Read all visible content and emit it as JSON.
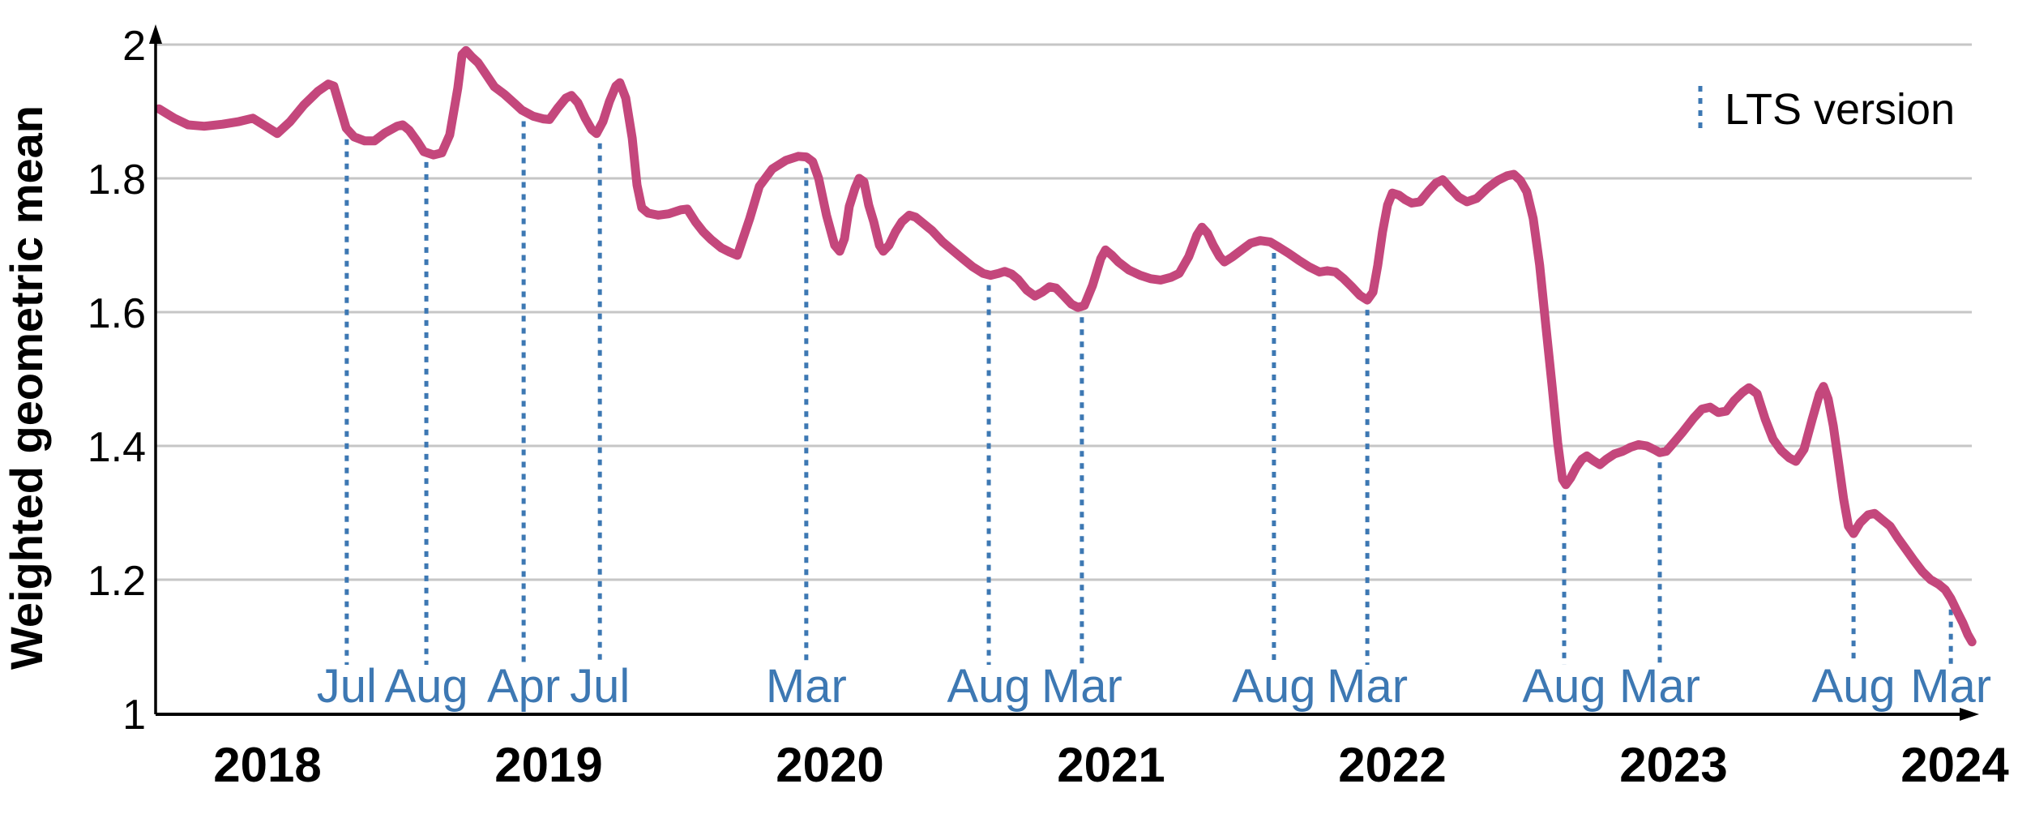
{
  "legend": {
    "label": "LTS version"
  },
  "axes": {
    "y_title": "Weighted geometric mean",
    "y_ticks": [
      {
        "label": "2",
        "value": 2.0
      },
      {
        "label": "1.8",
        "value": 1.8
      },
      {
        "label": "1.6",
        "value": 1.6
      },
      {
        "label": "1.4",
        "value": 1.4
      },
      {
        "label": "1.2",
        "value": 1.2
      },
      {
        "label": "1",
        "value": 1.0
      }
    ],
    "x_ticks": [
      {
        "label": "2018",
        "value": 2018
      },
      {
        "label": "2019",
        "value": 2019
      },
      {
        "label": "2020",
        "value": 2020
      },
      {
        "label": "2021",
        "value": 2021
      },
      {
        "label": "2022",
        "value": 2022
      },
      {
        "label": "2023",
        "value": 2023
      },
      {
        "label": "2024",
        "value": 2024
      }
    ]
  },
  "colors": {
    "line": "#c4477c",
    "marker": "#3d78b3",
    "grid": "#c6c6c6",
    "axis": "#000000"
  },
  "chart_data": {
    "type": "line",
    "title": "",
    "xlabel": "",
    "ylabel": "Weighted geometric mean",
    "ylim": [
      1,
      2
    ],
    "xlim": [
      2017.602,
      2024.075
    ],
    "grid": "horizontal",
    "legend_position": "top-right",
    "legend_entries": [
      {
        "name": "LTS version",
        "style": "dotted-vertical-line"
      }
    ],
    "lts_markers": [
      {
        "month": "Jul",
        "x": 2018.282,
        "top": 1.873
      },
      {
        "month": "Aug",
        "x": 2018.565,
        "top": 1.839
      },
      {
        "month": "Apr",
        "x": 2018.911,
        "top": 1.9
      },
      {
        "month": "Jul",
        "x": 2019.182,
        "top": 1.867
      },
      {
        "month": "Mar",
        "x": 2019.916,
        "top": 1.83
      },
      {
        "month": "Aug",
        "x": 2020.565,
        "top": 1.655
      },
      {
        "month": "Mar",
        "x": 2020.896,
        "top": 1.607
      },
      {
        "month": "Aug",
        "x": 2021.579,
        "top": 1.703
      },
      {
        "month": "Mar",
        "x": 2021.911,
        "top": 1.618
      },
      {
        "month": "Aug",
        "x": 2022.611,
        "top": 1.342
      },
      {
        "month": "Mar",
        "x": 2022.951,
        "top": 1.39
      },
      {
        "month": "Aug",
        "x": 2023.64,
        "top": 1.269
      },
      {
        "month": "Mar",
        "x": 2023.986,
        "top": 1.17
      }
    ],
    "series": [
      {
        "name": "Weighted geometric mean",
        "points": [
          [
            2017.614,
            1.904
          ],
          [
            2017.669,
            1.89
          ],
          [
            2017.718,
            1.88
          ],
          [
            2017.775,
            1.878
          ],
          [
            2017.841,
            1.881
          ],
          [
            2017.899,
            1.885
          ],
          [
            2017.948,
            1.89
          ],
          [
            2017.994,
            1.878
          ],
          [
            2018.035,
            1.867
          ],
          [
            2018.081,
            1.885
          ],
          [
            2018.13,
            1.91
          ],
          [
            2018.179,
            1.93
          ],
          [
            2018.216,
            1.941
          ],
          [
            2018.236,
            1.938
          ],
          [
            2018.259,
            1.905
          ],
          [
            2018.28,
            1.875
          ],
          [
            2018.308,
            1.862
          ],
          [
            2018.346,
            1.856
          ],
          [
            2018.38,
            1.856
          ],
          [
            2018.418,
            1.868
          ],
          [
            2018.461,
            1.878
          ],
          [
            2018.481,
            1.88
          ],
          [
            2018.504,
            1.872
          ],
          [
            2018.533,
            1.855
          ],
          [
            2018.556,
            1.84
          ],
          [
            2018.591,
            1.835
          ],
          [
            2018.62,
            1.838
          ],
          [
            2018.648,
            1.865
          ],
          [
            2018.677,
            1.935
          ],
          [
            2018.692,
            1.985
          ],
          [
            2018.706,
            1.991
          ],
          [
            2018.726,
            1.982
          ],
          [
            2018.749,
            1.973
          ],
          [
            2018.778,
            1.955
          ],
          [
            2018.807,
            1.937
          ],
          [
            2018.842,
            1.926
          ],
          [
            2018.879,
            1.912
          ],
          [
            2018.905,
            1.902
          ],
          [
            2018.945,
            1.893
          ],
          [
            2018.98,
            1.889
          ],
          [
            2019.003,
            1.888
          ],
          [
            2019.032,
            1.905
          ],
          [
            2019.061,
            1.92
          ],
          [
            2019.081,
            1.924
          ],
          [
            2019.104,
            1.913
          ],
          [
            2019.13,
            1.89
          ],
          [
            2019.153,
            1.873
          ],
          [
            2019.17,
            1.867
          ],
          [
            2019.193,
            1.885
          ],
          [
            2019.216,
            1.915
          ],
          [
            2019.239,
            1.938
          ],
          [
            2019.253,
            1.943
          ],
          [
            2019.274,
            1.92
          ],
          [
            2019.297,
            1.86
          ],
          [
            2019.314,
            1.79
          ],
          [
            2019.331,
            1.756
          ],
          [
            2019.354,
            1.748
          ],
          [
            2019.389,
            1.745
          ],
          [
            2019.427,
            1.747
          ],
          [
            2019.47,
            1.753
          ],
          [
            2019.493,
            1.754
          ],
          [
            2019.522,
            1.735
          ],
          [
            2019.55,
            1.72
          ],
          [
            2019.579,
            1.708
          ],
          [
            2019.614,
            1.696
          ],
          [
            2019.643,
            1.69
          ],
          [
            2019.671,
            1.685
          ],
          [
            2019.715,
            1.74
          ],
          [
            2019.749,
            1.788
          ],
          [
            2019.795,
            1.814
          ],
          [
            2019.844,
            1.827
          ],
          [
            2019.888,
            1.833
          ],
          [
            2019.916,
            1.832
          ],
          [
            2019.939,
            1.825
          ],
          [
            2019.96,
            1.8
          ],
          [
            2019.988,
            1.745
          ],
          [
            2020.017,
            1.7
          ],
          [
            2020.035,
            1.691
          ],
          [
            2020.052,
            1.71
          ],
          [
            2020.069,
            1.758
          ],
          [
            2020.089,
            1.785
          ],
          [
            2020.104,
            1.8
          ],
          [
            2020.121,
            1.795
          ],
          [
            2020.138,
            1.76
          ],
          [
            2020.156,
            1.735
          ],
          [
            2020.176,
            1.7
          ],
          [
            2020.19,
            1.691
          ],
          [
            2020.21,
            1.7
          ],
          [
            2020.233,
            1.72
          ],
          [
            2020.256,
            1.735
          ],
          [
            2020.282,
            1.745
          ],
          [
            2020.305,
            1.742
          ],
          [
            2020.334,
            1.732
          ],
          [
            2020.363,
            1.722
          ],
          [
            2020.401,
            1.705
          ],
          [
            2020.435,
            1.693
          ],
          [
            2020.472,
            1.68
          ],
          [
            2020.507,
            1.668
          ],
          [
            2020.545,
            1.658
          ],
          [
            2020.571,
            1.655
          ],
          [
            2020.6,
            1.658
          ],
          [
            2020.622,
            1.661
          ],
          [
            2020.646,
            1.657
          ],
          [
            2020.669,
            1.649
          ],
          [
            2020.7,
            1.633
          ],
          [
            2020.729,
            1.624
          ],
          [
            2020.755,
            1.63
          ],
          [
            2020.781,
            1.638
          ],
          [
            2020.804,
            1.636
          ],
          [
            2020.83,
            1.625
          ],
          [
            2020.859,
            1.612
          ],
          [
            2020.882,
            1.607
          ],
          [
            2020.905,
            1.61
          ],
          [
            2020.934,
            1.64
          ],
          [
            2020.963,
            1.68
          ],
          [
            2020.98,
            1.693
          ],
          [
            2021.003,
            1.685
          ],
          [
            2021.026,
            1.675
          ],
          [
            2021.063,
            1.663
          ],
          [
            2021.104,
            1.655
          ],
          [
            2021.141,
            1.65
          ],
          [
            2021.176,
            1.648
          ],
          [
            2021.213,
            1.652
          ],
          [
            2021.242,
            1.658
          ],
          [
            2021.276,
            1.683
          ],
          [
            2021.305,
            1.715
          ],
          [
            2021.323,
            1.727
          ],
          [
            2021.343,
            1.718
          ],
          [
            2021.363,
            1.7
          ],
          [
            2021.386,
            1.683
          ],
          [
            2021.403,
            1.675
          ],
          [
            2021.429,
            1.682
          ],
          [
            2021.464,
            1.693
          ],
          [
            2021.496,
            1.703
          ],
          [
            2021.53,
            1.707
          ],
          [
            2021.565,
            1.705
          ],
          [
            2021.597,
            1.697
          ],
          [
            2021.631,
            1.688
          ],
          [
            2021.666,
            1.678
          ],
          [
            2021.703,
            1.668
          ],
          [
            2021.741,
            1.66
          ],
          [
            2021.769,
            1.662
          ],
          [
            2021.798,
            1.66
          ],
          [
            2021.827,
            1.65
          ],
          [
            2021.856,
            1.638
          ],
          [
            2021.885,
            1.625
          ],
          [
            2021.911,
            1.618
          ],
          [
            2021.931,
            1.63
          ],
          [
            2021.948,
            1.67
          ],
          [
            2021.965,
            1.72
          ],
          [
            2021.983,
            1.76
          ],
          [
            2022.0,
            1.778
          ],
          [
            2022.023,
            1.775
          ],
          [
            2022.046,
            1.768
          ],
          [
            2022.069,
            1.763
          ],
          [
            2022.098,
            1.765
          ],
          [
            2022.127,
            1.78
          ],
          [
            2022.155,
            1.793
          ],
          [
            2022.179,
            1.798
          ],
          [
            2022.207,
            1.785
          ],
          [
            2022.236,
            1.772
          ],
          [
            2022.265,
            1.765
          ],
          [
            2022.3,
            1.77
          ],
          [
            2022.337,
            1.785
          ],
          [
            2022.375,
            1.797
          ],
          [
            2022.409,
            1.804
          ],
          [
            2022.432,
            1.806
          ],
          [
            2022.455,
            1.797
          ],
          [
            2022.478,
            1.78
          ],
          [
            2022.501,
            1.74
          ],
          [
            2022.524,
            1.67
          ],
          [
            2022.547,
            1.575
          ],
          [
            2022.568,
            1.49
          ],
          [
            2022.588,
            1.405
          ],
          [
            2022.605,
            1.35
          ],
          [
            2022.617,
            1.342
          ],
          [
            2022.634,
            1.352
          ],
          [
            2022.654,
            1.368
          ],
          [
            2022.674,
            1.38
          ],
          [
            2022.692,
            1.385
          ],
          [
            2022.715,
            1.378
          ],
          [
            2022.738,
            1.372
          ],
          [
            2022.761,
            1.38
          ],
          [
            2022.79,
            1.388
          ],
          [
            2022.819,
            1.392
          ],
          [
            2022.847,
            1.398
          ],
          [
            2022.876,
            1.402
          ],
          [
            2022.905,
            1.4
          ],
          [
            2022.934,
            1.394
          ],
          [
            2022.951,
            1.39
          ],
          [
            2022.974,
            1.392
          ],
          [
            2022.997,
            1.403
          ],
          [
            2023.031,
            1.42
          ],
          [
            2023.072,
            1.442
          ],
          [
            2023.101,
            1.455
          ],
          [
            2023.13,
            1.458
          ],
          [
            2023.159,
            1.45
          ],
          [
            2023.187,
            1.452
          ],
          [
            2023.216,
            1.468
          ],
          [
            2023.245,
            1.48
          ],
          [
            2023.268,
            1.487
          ],
          [
            2023.297,
            1.478
          ],
          [
            2023.326,
            1.44
          ],
          [
            2023.354,
            1.41
          ],
          [
            2023.383,
            1.393
          ],
          [
            2023.412,
            1.382
          ],
          [
            2023.435,
            1.377
          ],
          [
            2023.464,
            1.395
          ],
          [
            2023.493,
            1.44
          ],
          [
            2023.519,
            1.478
          ],
          [
            2023.533,
            1.489
          ],
          [
            2023.55,
            1.47
          ],
          [
            2023.568,
            1.43
          ],
          [
            2023.585,
            1.38
          ],
          [
            2023.605,
            1.32
          ],
          [
            2023.622,
            1.28
          ],
          [
            2023.64,
            1.269
          ],
          [
            2023.663,
            1.285
          ],
          [
            2023.692,
            1.297
          ],
          [
            2023.715,
            1.299
          ],
          [
            2023.741,
            1.29
          ],
          [
            2023.77,
            1.28
          ],
          [
            2023.798,
            1.262
          ],
          [
            2023.827,
            1.245
          ],
          [
            2023.856,
            1.228
          ],
          [
            2023.885,
            1.212
          ],
          [
            2023.914,
            1.2
          ],
          [
            2023.943,
            1.193
          ],
          [
            2023.966,
            1.185
          ],
          [
            2023.986,
            1.172
          ],
          [
            2024.009,
            1.152
          ],
          [
            2024.029,
            1.135
          ],
          [
            2024.046,
            1.118
          ],
          [
            2024.061,
            1.107
          ]
        ]
      }
    ]
  }
}
